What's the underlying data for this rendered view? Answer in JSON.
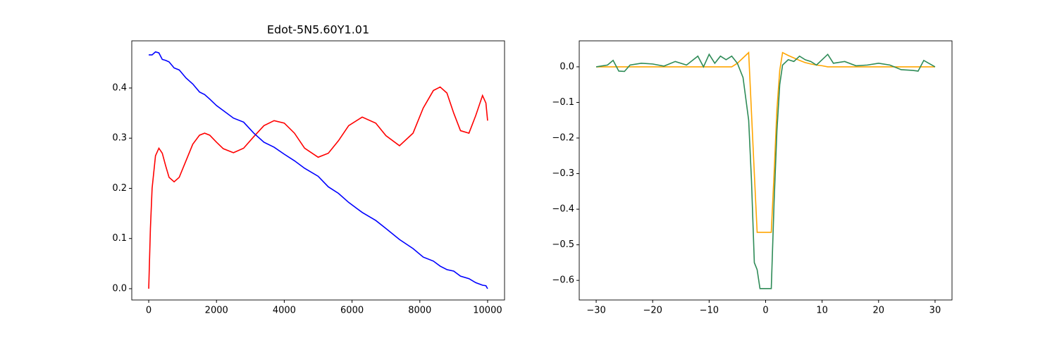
{
  "chart_data": [
    {
      "type": "line",
      "title": "Edot-5N5.60Y1.01",
      "x": [
        0,
        50,
        100,
        200,
        300,
        400,
        500,
        600,
        750,
        900,
        1100,
        1300,
        1500,
        1650,
        1800,
        2000,
        2200,
        2500,
        2800,
        3100,
        3400,
        3700,
        4000,
        4300,
        4600,
        5000,
        5300,
        5600,
        5900,
        6300,
        6700,
        7000,
        7400,
        7800,
        8100,
        8400,
        8600,
        8800,
        9000,
        9200,
        9450,
        9650,
        9850,
        9950,
        10000
      ],
      "series": [
        {
          "color": "#ff0000",
          "values": [
            0,
            0.12,
            0.2,
            0.265,
            0.28,
            0.27,
            0.245,
            0.222,
            0.213,
            0.222,
            0.255,
            0.288,
            0.306,
            0.31,
            0.306,
            0.292,
            0.279,
            0.271,
            0.28,
            0.303,
            0.325,
            0.335,
            0.33,
            0.31,
            0.28,
            0.262,
            0.27,
            0.295,
            0.325,
            0.342,
            0.33,
            0.305,
            0.285,
            0.31,
            0.36,
            0.395,
            0.402,
            0.39,
            0.35,
            0.315,
            0.31,
            0.345,
            0.385,
            0.37,
            0.335
          ]
        },
        {
          "color": "#0000ff",
          "values": [
            0.466,
            0.466,
            0.466,
            0.472,
            0.47,
            0.457,
            0.455,
            0.452,
            0.44,
            0.436,
            0.42,
            0.408,
            0.392,
            0.387,
            0.378,
            0.365,
            0.355,
            0.34,
            0.332,
            0.31,
            0.292,
            0.282,
            0.268,
            0.255,
            0.24,
            0.224,
            0.203,
            0.19,
            0.172,
            0.152,
            0.136,
            0.12,
            0.098,
            0.08,
            0.063,
            0.055,
            0.045,
            0.038,
            0.035,
            0.025,
            0.02,
            0.012,
            0.007,
            0.006,
            0
          ]
        }
      ],
      "xlim": [
        -500,
        10500
      ],
      "xticks": [
        0,
        2000,
        4000,
        6000,
        8000,
        10000
      ],
      "ylim": [
        -0.0225,
        0.494
      ],
      "yticks": [
        {
          "value": 0,
          "label": "0.0"
        },
        0.1,
        0.2,
        0.3,
        0.4
      ]
    },
    {
      "type": "line",
      "x": [
        -30,
        -28,
        -27,
        -26,
        -25,
        -24,
        -22,
        -20,
        -18,
        -16,
        -14,
        -12,
        -11,
        -10,
        -9,
        -8,
        -7,
        -6,
        -5,
        -4,
        -3,
        -2.5,
        -2,
        -1.5,
        -1,
        0,
        1,
        1.5,
        2,
        2.5,
        3,
        4,
        5,
        6,
        7,
        8,
        9,
        10,
        11,
        12,
        14,
        16,
        18,
        20,
        22,
        24,
        26,
        27,
        28,
        30
      ],
      "series": [
        {
          "color": "#ffa500",
          "values": [
            0,
            0,
            0,
            0,
            0,
            0,
            0,
            0,
            0,
            0,
            0,
            0,
            0,
            0,
            0,
            0,
            0,
            0,
            0.01,
            0.025,
            0.04,
            -0.13,
            -0.3,
            -0.465,
            -0.465,
            -0.465,
            -0.465,
            -0.3,
            -0.12,
            -0.01,
            0.04,
            0.032,
            0.025,
            0.018,
            0.012,
            0.008,
            0.005,
            0.003,
            0,
            0,
            0,
            0,
            0,
            0,
            0,
            0,
            0,
            0,
            0,
            0
          ]
        },
        {
          "color": "#2e8b57",
          "values": [
            0,
            0.005,
            0.018,
            -0.012,
            -0.013,
            0.005,
            0.01,
            0.008,
            0.002,
            0.015,
            0.005,
            0.03,
            0,
            0.035,
            0.01,
            0.03,
            0.02,
            0.03,
            0.01,
            -0.03,
            -0.15,
            -0.32,
            -0.55,
            -0.57,
            -0.623,
            -0.623,
            -0.623,
            -0.38,
            -0.18,
            -0.05,
            0.005,
            0.02,
            0.015,
            0.03,
            0.02,
            0.015,
            0.005,
            0.02,
            0.035,
            0.01,
            0.015,
            0.003,
            0.005,
            0.01,
            0.005,
            -0.008,
            -0.01,
            -0.012,
            0.018,
            0
          ]
        }
      ],
      "xlim": [
        -33,
        33
      ],
      "xticks": [
        {
          "value": -30,
          "label": "−30"
        },
        {
          "value": -20,
          "label": "−20"
        },
        {
          "value": -10,
          "label": "−10"
        },
        0,
        10,
        20,
        30
      ],
      "ylim": [
        -0.655,
        0.073
      ],
      "yticks": [
        {
          "value": 0,
          "label": "0.0"
        },
        {
          "value": -0.1,
          "label": "−0.1"
        },
        {
          "value": -0.2,
          "label": "−0.2"
        },
        {
          "value": -0.3,
          "label": "−0.3"
        },
        {
          "value": -0.4,
          "label": "−0.4"
        },
        {
          "value": -0.5,
          "label": "−0.5"
        },
        {
          "value": -0.6,
          "label": "−0.6"
        }
      ]
    }
  ]
}
